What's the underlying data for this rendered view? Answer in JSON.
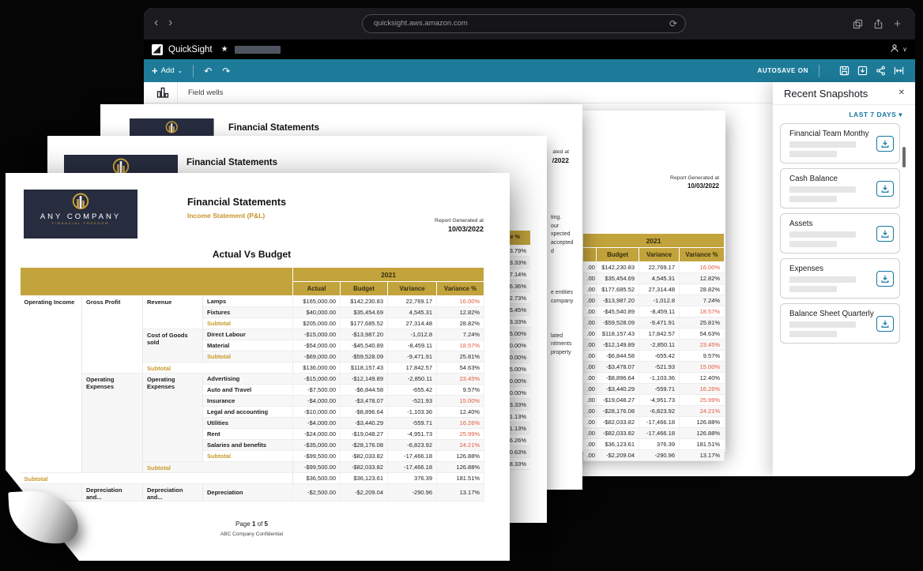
{
  "browser": {
    "url": "quicksight.aws.amazon.com",
    "back_glyph": "‹",
    "forward_glyph": "›",
    "reload_glyph": "⟳",
    "plus_glyph": "+"
  },
  "app_bar": {
    "product": "QuickSight",
    "star_glyph": "★",
    "user_caret_glyph": "∨"
  },
  "toolbar": {
    "add_label": "Add",
    "add_plus_glyph": "+",
    "add_caret_glyph": "⌄",
    "undo_glyph": "↶",
    "redo_glyph": "↷",
    "autosave_label": "AUTOSAVE ON"
  },
  "field_wells": {
    "label": "Field wells"
  },
  "snapshots_panel": {
    "title": "Recent Snapshots",
    "close_glyph": "✕",
    "filter_label": "LAST 7 DAYS",
    "filter_caret_glyph": "▾",
    "items": [
      {
        "title": "Financial Team Monthy"
      },
      {
        "title": "Cash Balance"
      },
      {
        "title": "Assets"
      },
      {
        "title": "Expenses"
      },
      {
        "title": "Balance Sheet Quarterly"
      }
    ]
  },
  "report": {
    "logo": {
      "company": "ANY COMPANY",
      "tagline": "FINANCIAL FREEDOM"
    },
    "title": "Financial Statements",
    "subtitle": "Income Statement  (P&L)",
    "generated_label": "Report Generated at",
    "generated_date": "10/03/2022",
    "table_title": "Actual Vs Budget",
    "year_header": "2021",
    "columns": [
      "Actual",
      "Budget",
      "Variance",
      "Variance %"
    ],
    "footer": {
      "page_word": "Page",
      "page_number": "1",
      "of_word": "of",
      "page_total": "5"
    },
    "confidential": "ABC Company Confidential",
    "rows": [
      {
        "c1": {
          "text": "Operating Income",
          "rows": 16
        },
        "c2": {
          "text": "Gross Profit",
          "rows": 7
        },
        "c3": {
          "text": "Revenue",
          "rows": 3
        },
        "label": "Lamps",
        "actual": "$165,000.00",
        "budget": "$142,230.83",
        "variance": "22,769.17",
        "variance_pct": "16.00%",
        "pct_red": true
      },
      {
        "label": "Fixtures",
        "actual": "$40,000.00",
        "budget": "$35,454.69",
        "variance": "4,545.31",
        "variance_pct": "12.82%"
      },
      {
        "label": "Subtotal",
        "label_gold": true,
        "actual": "$205,000.00",
        "budget": "$177,685.52",
        "variance": "27,314.48",
        "variance_pct": "28.82%"
      },
      {
        "c3": {
          "text": "Cost of Goods sold",
          "rows": 3
        },
        "label": "Direct Labour",
        "actual": "-$15,000.00",
        "budget": "-$13,987.20",
        "variance": "-1,012.8",
        "variance_pct": "7.24%"
      },
      {
        "label": "Material",
        "actual": "-$54,000.00",
        "budget": "-$45,540.89",
        "variance": "-8,459.11",
        "variance_pct": "18.57%",
        "pct_red": true
      },
      {
        "label": "Subtotal",
        "label_gold": true,
        "actual": "-$69,000.00",
        "budget": "-$59,528.09",
        "variance": "-9,471.91",
        "variance_pct": "25.81%"
      },
      {
        "c3": {
          "text": "Subtotal",
          "rows": 1,
          "cols": 2,
          "gold": true
        },
        "actual": "$136,000.00",
        "budget": "$118,157.43",
        "variance": "17,842.57",
        "variance_pct": "54.63%"
      },
      {
        "c2": {
          "text": "Operating Expenses",
          "rows": 9
        },
        "c3": {
          "text": "Operating Expenses",
          "rows": 8
        },
        "label": "Advertising",
        "actual": "-$15,000.00",
        "budget": "-$12,149.89",
        "variance": "-2,850.11",
        "variance_pct": "23.45%",
        "pct_red": true
      },
      {
        "label": "Auto and Travel",
        "actual": "-$7,500.00",
        "budget": "-$6,844.58",
        "variance": "-655.42",
        "variance_pct": "9.57%"
      },
      {
        "label": "Insurance",
        "actual": "-$4,000.00",
        "budget": "-$3,478.07",
        "variance": "-521.93",
        "variance_pct": "15.00%",
        "pct_red": true
      },
      {
        "label": "Legal and accounting",
        "actual": "-$10,000.00",
        "budget": "-$8,896.64",
        "variance": "-1,103.36",
        "variance_pct": "12.40%"
      },
      {
        "label": "Utilities",
        "actual": "-$4,000.00",
        "budget": "-$3,440.29",
        "variance": "-559.71",
        "variance_pct": "16.26%",
        "pct_red": true
      },
      {
        "label": "Rent",
        "actual": "-$24,000.00",
        "budget": "-$19,048.27",
        "variance": "-4,951.73",
        "variance_pct": "25.99%",
        "pct_red": true
      },
      {
        "label": "Salaries and benefits",
        "actual": "-$35,000.00",
        "budget": "-$28,176.08",
        "variance": "-6,823.92",
        "variance_pct": "24.21%",
        "pct_red": true
      },
      {
        "label": "Subtotal",
        "label_gold": true,
        "actual": "-$99,500.00",
        "budget": "-$82,033.82",
        "variance": "-17,466.18",
        "variance_pct": "126.88%"
      },
      {
        "c3": {
          "text": "Subtotal",
          "rows": 1,
          "cols": 2,
          "gold": true
        },
        "actual": "-$99,500.00",
        "budget": "-$82,033.82",
        "variance": "-17,466.18",
        "variance_pct": "126.88%"
      },
      {
        "c1": {
          "text": "Subtotal",
          "rows": 1,
          "cols": 4,
          "gold": true
        },
        "actual": "$36,500.00",
        "budget": "$36,123.61",
        "variance": "376.39",
        "variance_pct": "181.51%"
      },
      {
        "c1": {
          "text": "",
          "rows": 1
        },
        "c2": {
          "text": "Depreciation and...",
          "rows": 1
        },
        "c3": {
          "text": "Depreciation and...",
          "rows": 1
        },
        "label": "Depreciation",
        "actual": "-$2,500.00",
        "budget": "-$2,209.04",
        "variance": "-290.96",
        "variance_pct": "13.17%"
      }
    ]
  },
  "page2": {
    "title": "Financial Statements",
    "visible_column_header": "Variance %",
    "percents": [
      "3.79%",
      "3.33%",
      "7.14%",
      "6.36%",
      "2.73%",
      "5.45%",
      "3.33%",
      "5.00%",
      "0.00%",
      "0.00%",
      "5.00%",
      "0.00%",
      "0.00%",
      "3.33%",
      "1.13%",
      "1.13%",
      "6.26%",
      "0.63%",
      "8.33%"
    ]
  },
  "page3": {
    "title": "Financial Statements",
    "generated_label_fragment": "ated at",
    "generated_date_fragment": "/2022",
    "text_fragments": [
      "ting.",
      "our",
      "xpected",
      "accepted",
      "d",
      "e entities",
      "company",
      "lated",
      "nitments",
      "property"
    ]
  },
  "page4": {
    "generated_label": "Report Generated at",
    "generated_date": "10/03/2022",
    "year_header": "2021",
    "columns": [
      "Budget",
      "Variance",
      "Variance %"
    ],
    "actual_fragment": ".00"
  },
  "colors": {
    "accent_teal": "#1d7b99",
    "gold_header": "#c2a33c",
    "subtotal_gold": "#c89b2a",
    "variance_red": "#e25840",
    "logo_navy": "#272c3f",
    "logo_gold": "#c9a13b",
    "panel_link": "#1578a0"
  }
}
